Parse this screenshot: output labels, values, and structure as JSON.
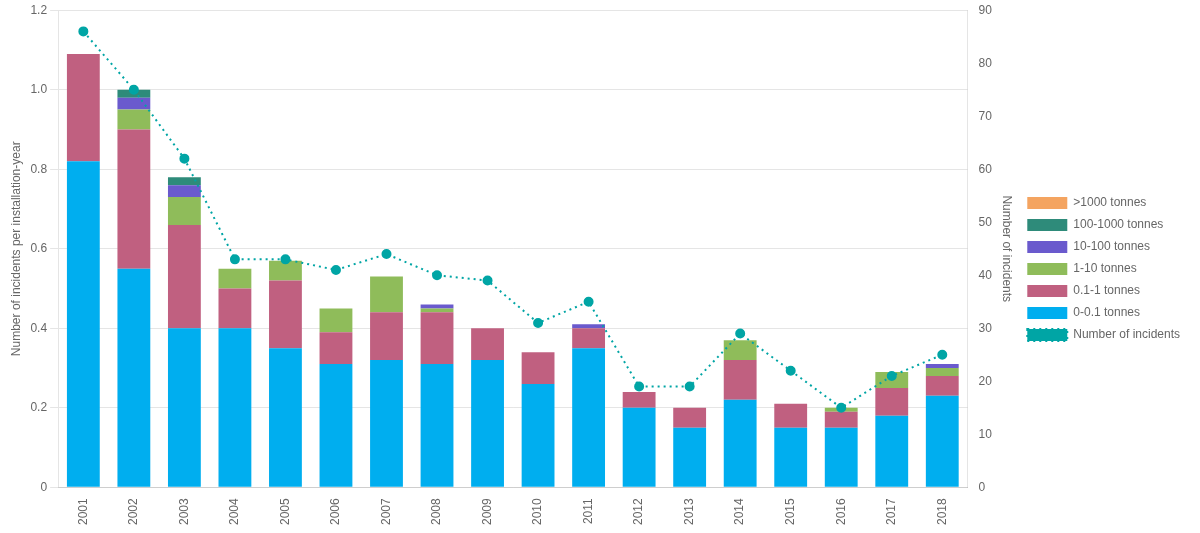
{
  "chart_data": {
    "type": "bar",
    "stacked": true,
    "grid": true,
    "legend": "right",
    "categories": [
      "2001",
      "2002",
      "2003",
      "2004",
      "2005",
      "2006",
      "2007",
      "2008",
      "2009",
      "2010",
      "2011",
      "2012",
      "2013",
      "2014",
      "2015",
      "2016",
      "2017",
      "2018"
    ],
    "ylabel": "Number of incidents per installation-year",
    "y2label": "Number of incidents",
    "ylim": [
      0,
      1.2
    ],
    "yticks": [
      0,
      0.2,
      0.4,
      0.6,
      0.8,
      {
        "value": 1.0,
        "label": "1.0"
      },
      1.2
    ],
    "y2lim": [
      0,
      90
    ],
    "y2ticks": [
      0,
      10,
      20,
      30,
      40,
      50,
      60,
      70,
      80,
      90
    ],
    "series": [
      {
        "name": "0-0.1 tonnes",
        "color": "#00AEEF",
        "values": [
          0.82,
          0.55,
          0.4,
          0.4,
          0.35,
          0.31,
          0.32,
          0.31,
          0.32,
          0.26,
          0.35,
          0.2,
          0.15,
          0.22,
          0.15,
          0.15,
          0.18,
          0.23
        ]
      },
      {
        "name": "0.1-1 tonnes",
        "color": "#C06080",
        "values": [
          0.27,
          0.35,
          0.26,
          0.1,
          0.17,
          0.08,
          0.12,
          0.13,
          0.08,
          0.08,
          0.05,
          0.04,
          0.05,
          0.1,
          0.06,
          0.04,
          0.07,
          0.05
        ]
      },
      {
        "name": "1-10 tonnes",
        "color": "#8FBC5A",
        "values": [
          0.0,
          0.05,
          0.07,
          0.05,
          0.05,
          0.06,
          0.09,
          0.01,
          0.0,
          0.0,
          0.0,
          0.0,
          0.0,
          0.05,
          0.0,
          0.01,
          0.04,
          0.02
        ]
      },
      {
        "name": "10-100 tonnes",
        "color": "#6A5ACD",
        "values": [
          0.0,
          0.03,
          0.03,
          0.0,
          0.0,
          0.0,
          0.0,
          0.01,
          0.0,
          0.0,
          0.01,
          0.0,
          0.0,
          0.0,
          0.0,
          0.0,
          0.0,
          0.01
        ]
      },
      {
        "name": "100-1000 tonnes",
        "color": "#2E8B7A",
        "values": [
          0.0,
          0.02,
          0.02,
          0.0,
          0.0,
          0.0,
          0.0,
          0.0,
          0.0,
          0.0,
          0.0,
          0.0,
          0.0,
          0.0,
          0.0,
          0.0,
          0.0,
          0.0
        ]
      },
      {
        "name": ">1000 tonnes",
        "color": "#F4A460",
        "values": [
          0.0,
          0.0,
          0.0,
          0.0,
          0.0,
          0.0,
          0.0,
          0.0,
          0.0,
          0.0,
          0.0,
          0.0,
          0.0,
          0.0,
          0.0,
          0.0,
          0.0,
          0.0
        ]
      },
      {
        "name": "Number of incidents",
        "type": "line",
        "axis": "y2",
        "color": "#00A5A5",
        "line_style": "dotted",
        "marker": "circle",
        "values": [
          86,
          75,
          62,
          43,
          43,
          41,
          44,
          40,
          39,
          31,
          35,
          19,
          19,
          29,
          22,
          15,
          21,
          25
        ]
      }
    ]
  }
}
